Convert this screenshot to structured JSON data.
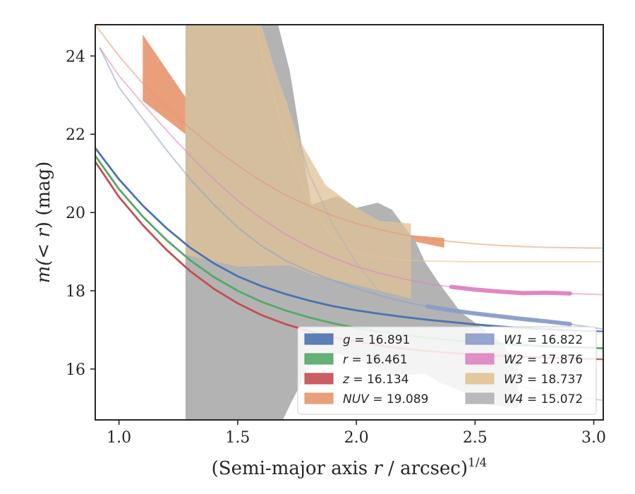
{
  "chart_data": {
    "type": "line",
    "xlabel": "(Semi-major axis r / arcsec)^{1/4}",
    "xlabel_parts": {
      "main": "(Semi-major axis ",
      "var": "r",
      "mid": " / arcsec)",
      "sup": "1/4"
    },
    "ylabel_parts": {
      "pre": "m(",
      "var": "< r",
      "post": ") (mag)"
    },
    "xlim": [
      0.9,
      3.04
    ],
    "ylim": [
      24.8,
      14.7
    ],
    "y_inverted": true,
    "xticks": [
      1.0,
      1.5,
      2.0,
      2.5,
      3.0
    ],
    "xtick_labels": [
      "1.0",
      "1.5",
      "2.0",
      "2.5",
      "3.0"
    ],
    "yticks": [
      16,
      18,
      20,
      22,
      24
    ],
    "ytick_labels": [
      "16",
      "18",
      "20",
      "22",
      "24"
    ],
    "grid": false,
    "legend_position": "lower-right",
    "legend_columns": 2,
    "series": [
      {
        "name": "g = 16.891",
        "band": "g",
        "mag": "16.891",
        "color": "#4c72b0",
        "thick_until": 2.87,
        "x": [
          0.9,
          1.0,
          1.1,
          1.2,
          1.3,
          1.4,
          1.5,
          1.6,
          1.7,
          1.8,
          1.9,
          2.0,
          2.1,
          2.2,
          2.3,
          2.4,
          2.5,
          2.6,
          2.7,
          2.8,
          2.87,
          2.95,
          3.04
        ],
        "y": [
          21.65,
          20.85,
          20.18,
          19.6,
          19.1,
          18.7,
          18.37,
          18.12,
          17.92,
          17.75,
          17.61,
          17.5,
          17.41,
          17.33,
          17.26,
          17.2,
          17.14,
          17.09,
          17.05,
          17.02,
          17.0,
          16.98,
          16.96
        ]
      },
      {
        "name": "r = 16.461",
        "band": "r",
        "mag": "16.461",
        "color": "#55a868",
        "thick_until": 3.04,
        "x": [
          0.9,
          1.0,
          1.1,
          1.2,
          1.3,
          1.4,
          1.5,
          1.6,
          1.7,
          1.8,
          1.9,
          2.0,
          2.1,
          2.2,
          2.3,
          2.4,
          2.5,
          2.6,
          2.7,
          2.8,
          2.9,
          3.04
        ],
        "y": [
          21.45,
          20.6,
          19.9,
          19.3,
          18.78,
          18.35,
          18.0,
          17.72,
          17.5,
          17.32,
          17.17,
          17.05,
          16.95,
          16.87,
          16.8,
          16.74,
          16.69,
          16.65,
          16.61,
          16.58,
          16.56,
          16.53
        ]
      },
      {
        "name": "z = 16.134",
        "band": "z",
        "mag": "16.134",
        "color": "#c44e52",
        "thick_until": 2.9,
        "x": [
          0.9,
          1.0,
          1.1,
          1.2,
          1.3,
          1.4,
          1.5,
          1.6,
          1.7,
          1.8,
          1.9,
          2.0,
          2.1,
          2.2,
          2.3,
          2.4,
          2.5,
          2.6,
          2.7,
          2.8,
          2.9,
          3.04
        ],
        "y": [
          21.3,
          20.4,
          19.68,
          19.05,
          18.5,
          18.05,
          17.68,
          17.38,
          17.15,
          16.97,
          16.82,
          16.7,
          16.6,
          16.52,
          16.46,
          16.41,
          16.37,
          16.34,
          16.31,
          16.29,
          16.27,
          16.25
        ]
      },
      {
        "name": "NUV = 19.089",
        "band": "NUV",
        "mag": "19.089",
        "color": "#e8956d",
        "thick_from": 2.23,
        "thick_until": 2.37,
        "x": [
          0.9,
          1.0,
          1.1,
          1.2,
          1.3,
          1.4,
          1.5,
          1.6,
          1.7,
          1.8,
          1.9,
          2.0,
          2.1,
          2.2,
          2.3,
          2.4,
          2.5,
          2.6,
          2.7,
          2.8,
          2.9,
          3.04
        ],
        "y": [
          24.8,
          24.0,
          23.3,
          22.7,
          22.15,
          21.65,
          21.2,
          20.8,
          20.45,
          20.17,
          19.92,
          19.72,
          19.56,
          19.43,
          19.33,
          19.26,
          19.2,
          19.16,
          19.13,
          19.11,
          19.1,
          19.09
        ]
      },
      {
        "name": "W1 = 16.822",
        "band": "W1",
        "mag": "16.822",
        "color": "#8c9cc8",
        "thick_from": 2.3,
        "thick_until": 2.95,
        "x": [
          0.92,
          1.0,
          1.1,
          1.2,
          1.3,
          1.4,
          1.5,
          1.6,
          1.7,
          1.8,
          1.9,
          2.0,
          2.1,
          2.2,
          2.3,
          2.4,
          2.5,
          2.6,
          2.7,
          2.8,
          2.9,
          3.04
        ],
        "y": [
          24.2,
          23.2,
          22.4,
          21.6,
          20.85,
          20.2,
          19.62,
          19.15,
          18.78,
          18.5,
          18.27,
          18.06,
          17.88,
          17.72,
          17.6,
          17.5,
          17.42,
          17.35,
          17.28,
          17.22,
          17.15,
          17.02
        ]
      },
      {
        "name": "W2 = 17.876",
        "band": "W2",
        "mag": "17.876",
        "color": "#dd84c0",
        "thick_from": 2.35,
        "thick_until": 2.92,
        "x": [
          0.92,
          1.0,
          1.1,
          1.2,
          1.3,
          1.4,
          1.5,
          1.6,
          1.7,
          1.8,
          1.9,
          2.0,
          2.1,
          2.2,
          2.3,
          2.4,
          2.5,
          2.6,
          2.7,
          2.8,
          2.9,
          3.04
        ],
        "y": [
          24.2,
          23.5,
          22.78,
          22.1,
          21.45,
          20.85,
          20.3,
          19.85,
          19.45,
          19.12,
          18.85,
          18.62,
          18.45,
          18.3,
          18.18,
          18.1,
          18.03,
          17.98,
          17.94,
          17.95,
          17.93,
          17.9
        ]
      },
      {
        "name": "W3 = 18.737",
        "band": "W3",
        "mag": "18.737",
        "color": "#e3c295",
        "thick_until": 0,
        "x": [
          1.58,
          1.6,
          1.65,
          1.7,
          1.75,
          1.8,
          1.85,
          1.9,
          1.95,
          2.0,
          2.1,
          2.2,
          2.3,
          2.5,
          2.7,
          3.04
        ],
        "y": [
          24.8,
          24.1,
          23.0,
          21.95,
          21.05,
          20.35,
          19.8,
          19.4,
          19.15,
          18.98,
          18.84,
          18.79,
          18.76,
          18.74,
          18.74,
          18.74
        ]
      },
      {
        "name": "W4 = 15.072",
        "band": "W4",
        "mag": "15.072",
        "color": "#b3b3b3",
        "thick_until": 0,
        "x": [
          1.63,
          1.7,
          1.8,
          1.9,
          2.0,
          2.1,
          2.2,
          2.3,
          2.4,
          2.5,
          2.6,
          2.7,
          2.8,
          2.9,
          3.04
        ],
        "y": [
          24.8,
          23.0,
          21.0,
          19.7,
          18.7,
          17.95,
          17.35,
          16.9,
          16.45,
          16.05,
          15.75,
          15.55,
          15.4,
          15.3,
          15.2
        ]
      }
    ],
    "bands": [
      {
        "band": "NUV",
        "color": "#e8956d",
        "opacity": 0.9,
        "upper": [
          [
            1.1,
            22.85
          ],
          [
            1.28,
            22.0
          ]
        ],
        "lower": [
          [
            1.1,
            24.55
          ],
          [
            1.28,
            22.95
          ]
        ]
      },
      {
        "band": "NUV",
        "color": "#e8956d",
        "opacity": 0.9,
        "upper": [
          [
            2.23,
            19.28
          ],
          [
            2.37,
            19.1
          ]
        ],
        "lower": [
          [
            2.23,
            19.42
          ],
          [
            2.37,
            19.35
          ]
        ]
      },
      {
        "band": "W4",
        "color": "#b3b3b3",
        "opacity": 1,
        "upper": [
          [
            1.28,
            14.7
          ],
          [
            1.69,
            14.7
          ],
          [
            1.73,
            15.2
          ],
          [
            1.82,
            16.25
          ],
          [
            1.92,
            16.4
          ],
          [
            2.0,
            16.25
          ],
          [
            2.1,
            16.0
          ],
          [
            2.15,
            15.85
          ],
          [
            2.22,
            15.85
          ],
          [
            2.29,
            15.88
          ],
          [
            2.35,
            15.65
          ],
          [
            2.44,
            15.45
          ],
          [
            2.53,
            15.1
          ],
          [
            2.61,
            15.05
          ],
          [
            2.68,
            15.0
          ]
        ],
        "lower": [
          [
            1.28,
            24.8
          ],
          [
            1.67,
            24.8
          ],
          [
            1.72,
            23.6
          ],
          [
            1.81,
            20.2
          ],
          [
            1.92,
            20.42
          ],
          [
            2.0,
            20.12
          ],
          [
            2.09,
            20.25
          ],
          [
            2.15,
            20.07
          ],
          [
            2.25,
            19.25
          ],
          [
            2.29,
            18.72
          ],
          [
            2.35,
            18.18
          ],
          [
            2.44,
            17.45
          ],
          [
            2.53,
            17.05
          ],
          [
            2.61,
            16.68
          ],
          [
            2.68,
            16.05
          ]
        ]
      },
      {
        "band": "W3",
        "color": "#dfc297",
        "opacity": 0.75,
        "upper": [
          [
            1.28,
            18.92
          ],
          [
            1.5,
            18.62
          ],
          [
            1.72,
            18.65
          ],
          [
            1.82,
            18.4
          ],
          [
            1.95,
            18.22
          ],
          [
            2.1,
            18.0
          ],
          [
            2.23,
            17.8
          ]
        ],
        "lower": [
          [
            1.28,
            24.8
          ],
          [
            1.6,
            24.8
          ],
          [
            1.66,
            23.6
          ],
          [
            1.77,
            21.75
          ],
          [
            1.87,
            20.7
          ],
          [
            2.0,
            20.12
          ],
          [
            2.1,
            19.78
          ],
          [
            2.23,
            19.72
          ]
        ]
      }
    ]
  }
}
